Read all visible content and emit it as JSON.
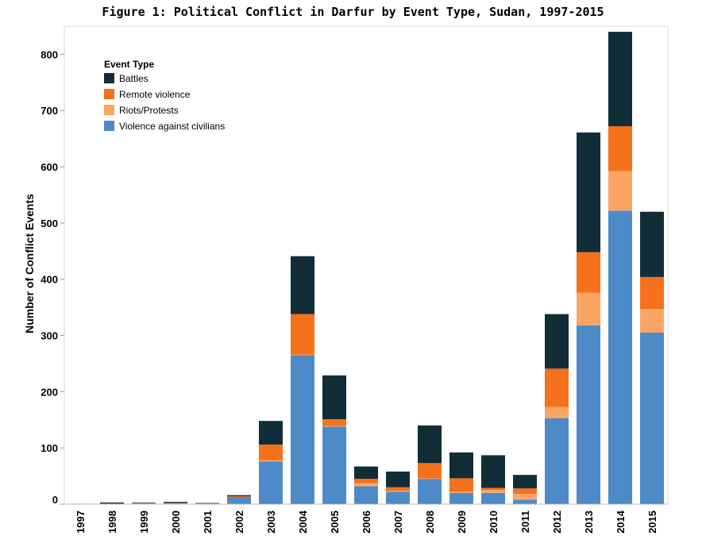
{
  "chart_data": {
    "type": "bar",
    "stacked": true,
    "title": "Figure 1: Political Conflict in Darfur by Event Type, Sudan, 1997-2015",
    "ylabel": "Number of Conflict Events",
    "xlabel": "",
    "ylim": [
      0,
      850
    ],
    "yticks": [
      0,
      100,
      200,
      300,
      400,
      500,
      600,
      700,
      800
    ],
    "grid": false,
    "legend": {
      "title": "Event Type",
      "placement": "top-left"
    },
    "categories": [
      "1997",
      "1998",
      "1999",
      "2000",
      "2001",
      "2002",
      "2003",
      "2004",
      "2005",
      "2006",
      "2007",
      "2008",
      "2009",
      "2010",
      "2011",
      "2012",
      "2013",
      "2014",
      "2015"
    ],
    "series": [
      {
        "name": "Violence against civilians",
        "color": "#4e8ac8",
        "values": [
          0,
          1,
          1,
          1,
          1,
          12,
          76,
          265,
          138,
          32,
          22,
          45,
          20,
          20,
          8,
          153,
          318,
          522,
          305
        ]
      },
      {
        "name": "Riots/Protests",
        "color": "#fba565",
        "values": [
          1,
          0,
          0,
          0,
          0,
          0,
          2,
          1,
          1,
          5,
          2,
          1,
          2,
          5,
          10,
          20,
          58,
          70,
          42
        ]
      },
      {
        "name": "Remote violence",
        "color": "#f5711c",
        "values": [
          0,
          0,
          1,
          1,
          0,
          2,
          28,
          72,
          12,
          8,
          6,
          27,
          24,
          4,
          10,
          68,
          72,
          80,
          57
        ]
      },
      {
        "name": "Battles",
        "color": "#112d38",
        "values": [
          0,
          2,
          1,
          2,
          1,
          2,
          42,
          103,
          78,
          22,
          28,
          67,
          46,
          58,
          24,
          97,
          213,
          168,
          116
        ]
      }
    ]
  }
}
